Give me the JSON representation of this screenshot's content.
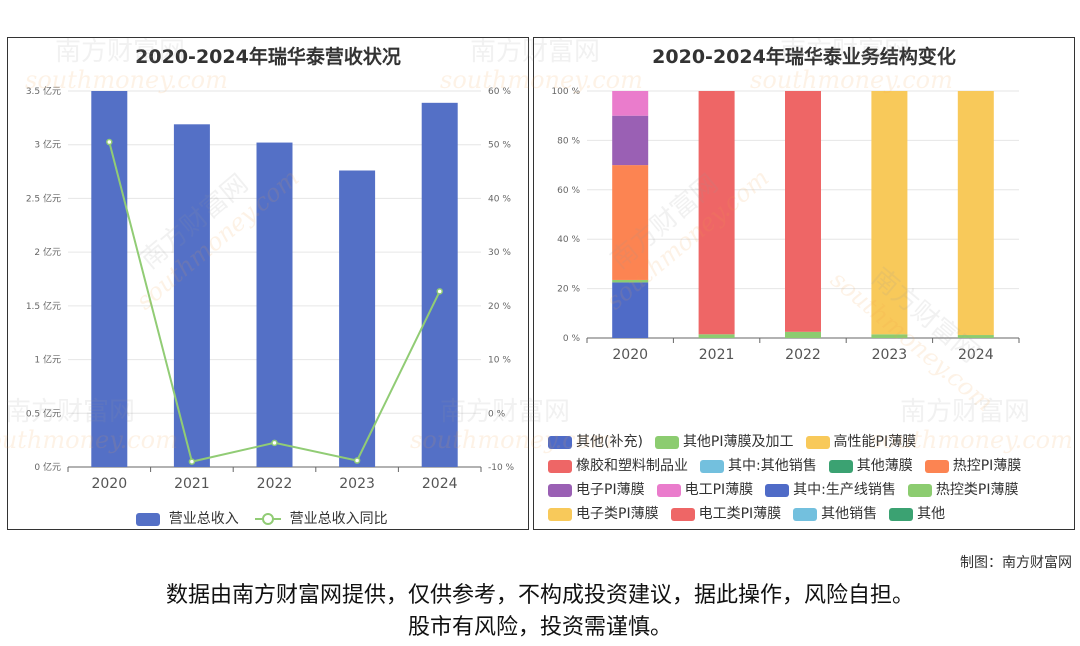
{
  "left_chart": {
    "title": "2020-2024年瑞华泰营收状况",
    "categories": [
      "2020",
      "2021",
      "2022",
      "2023",
      "2024"
    ],
    "left_ticks": [
      "0 亿元",
      "0.5 亿元",
      "1 亿元",
      "1.5 亿元",
      "2 亿元",
      "2.5 亿元",
      "3 亿元",
      "3.5 亿元"
    ],
    "right_ticks": [
      "-10 %",
      "0 %",
      "10 %",
      "20 %",
      "30 %",
      "40 %",
      "50 %",
      "60 %"
    ],
    "legend": {
      "bar": "营业总收入",
      "line": "营业总收入同比"
    }
  },
  "right_chart": {
    "title": "2020-2024年瑞华泰业务结构变化",
    "y_ticks": [
      "0 %",
      "20 %",
      "40 %",
      "60 %",
      "80 %",
      "100 %"
    ],
    "legend_rows": [
      [
        {
          "label": "其他(补充)",
          "color": "#4f6bc7"
        },
        {
          "label": "其他PI薄膜及加工",
          "color": "#8ccc70"
        },
        {
          "label": "高性能PI薄膜",
          "color": "#f8c95a"
        }
      ],
      [
        {
          "label": "橡胶和塑料制品业",
          "color": "#ee6666"
        },
        {
          "label": "其中:其他销售",
          "color": "#73c0de"
        },
        {
          "label": "其他薄膜",
          "color": "#3ba272"
        },
        {
          "label": "热控PI薄膜",
          "color": "#fc8452"
        }
      ],
      [
        {
          "label": "电子PI薄膜",
          "color": "#9a60b4"
        },
        {
          "label": "电工PI薄膜",
          "color": "#ea7ccc"
        },
        {
          "label": "其中:生产线销售",
          "color": "#4f6bc7"
        },
        {
          "label": "热控类PI薄膜",
          "color": "#8ccc70"
        }
      ],
      [
        {
          "label": "电子类PI薄膜",
          "color": "#f8c95a"
        },
        {
          "label": "电工类PI薄膜",
          "color": "#ee6666"
        },
        {
          "label": "其他销售",
          "color": "#73c0de"
        },
        {
          "label": "其他",
          "color": "#3ba272"
        }
      ]
    ]
  },
  "chart_data": [
    {
      "type": "bar",
      "title": "2020-2024年瑞华泰营收状况",
      "categories": [
        "2020",
        "2021",
        "2022",
        "2023",
        "2024"
      ],
      "series": [
        {
          "name": "营业总收入",
          "type": "bar",
          "axis": "left",
          "unit": "亿元",
          "values": [
            3.5,
            3.19,
            3.02,
            2.76,
            3.39
          ],
          "color": "#5470c6"
        },
        {
          "name": "营业总收入同比",
          "type": "line",
          "axis": "right",
          "unit": "%",
          "values": [
            50.5,
            -9.0,
            -5.5,
            -8.8,
            22.7
          ],
          "color": "#91cc75"
        }
      ],
      "ylim_left": [
        0,
        3.5
      ],
      "ylim_right": [
        -10,
        60
      ],
      "grid": true,
      "legend_position": "bottom"
    },
    {
      "type": "bar",
      "stacked": true,
      "title": "2020-2024年瑞华泰业务结构变化",
      "categories": [
        "2020",
        "2021",
        "2022",
        "2023",
        "2024"
      ],
      "ylim": [
        0,
        100
      ],
      "unit": "%",
      "series": [
        {
          "name": "其中:生产线销售",
          "color": "#4f6bc7",
          "values": [
            22.5,
            0,
            0,
            0,
            0
          ]
        },
        {
          "name": "其他PI薄膜及加工",
          "color": "#8ccc70",
          "values": [
            1,
            1.5,
            2.5,
            1.5,
            1.2
          ]
        },
        {
          "name": "热控PI薄膜",
          "color": "#fc8452",
          "values": [
            46.5,
            0,
            0,
            0,
            0
          ]
        },
        {
          "name": "电子PI薄膜",
          "color": "#9a60b4",
          "values": [
            20,
            0,
            0,
            0,
            0
          ]
        },
        {
          "name": "电工PI薄膜",
          "color": "#ea7ccc",
          "values": [
            10,
            0,
            0,
            0,
            0
          ]
        },
        {
          "name": "橡胶和塑料制品业",
          "color": "#ee6666",
          "values": [
            0,
            98.5,
            97.5,
            0,
            0
          ]
        },
        {
          "name": "高性能PI薄膜",
          "color": "#f8c95a",
          "values": [
            0,
            0,
            0,
            98.5,
            98.8
          ]
        }
      ],
      "grid": true,
      "legend_position": "bottom"
    }
  ],
  "watermark": {
    "brand": "南方财富网",
    "domain": "southmoney.com"
  },
  "credit": "制图：南方财富网",
  "disclaimer": {
    "line1": "数据由南方财富网提供，仅供参考，不构成投资建议，据此操作，风险自担。",
    "line2": "股市有风险，投资需谨慎。"
  }
}
